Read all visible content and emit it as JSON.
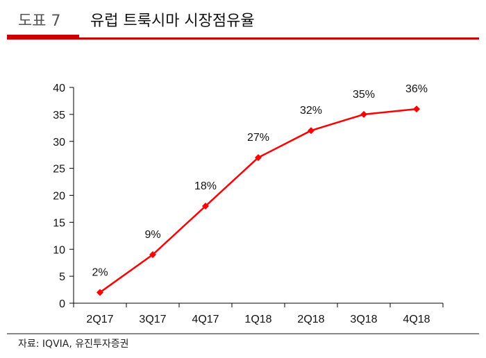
{
  "header": {
    "figure_label": "도표 7",
    "title": "유럽 트룩시마 시장점유율"
  },
  "footer": {
    "source": "자료: IQVIA, 유진투자증권"
  },
  "colors": {
    "accent": "#cc0000",
    "series": "#ff0000"
  },
  "chart_data": {
    "type": "line",
    "title": "유럽 트룩시마 시장점유율",
    "categories": [
      "2Q17",
      "3Q17",
      "4Q17",
      "1Q18",
      "2Q18",
      "3Q18",
      "4Q18"
    ],
    "series": [
      {
        "name": "시장점유율",
        "values": [
          2,
          9,
          18,
          27,
          32,
          35,
          36
        ]
      }
    ],
    "data_labels": [
      "2%",
      "9%",
      "18%",
      "27%",
      "32%",
      "35%",
      "36%"
    ],
    "ylim": [
      0,
      40
    ],
    "yticks": [
      0,
      5,
      10,
      15,
      20,
      25,
      30,
      35,
      40
    ],
    "xlabel": "",
    "ylabel": "",
    "grid": false,
    "legend": "none"
  }
}
